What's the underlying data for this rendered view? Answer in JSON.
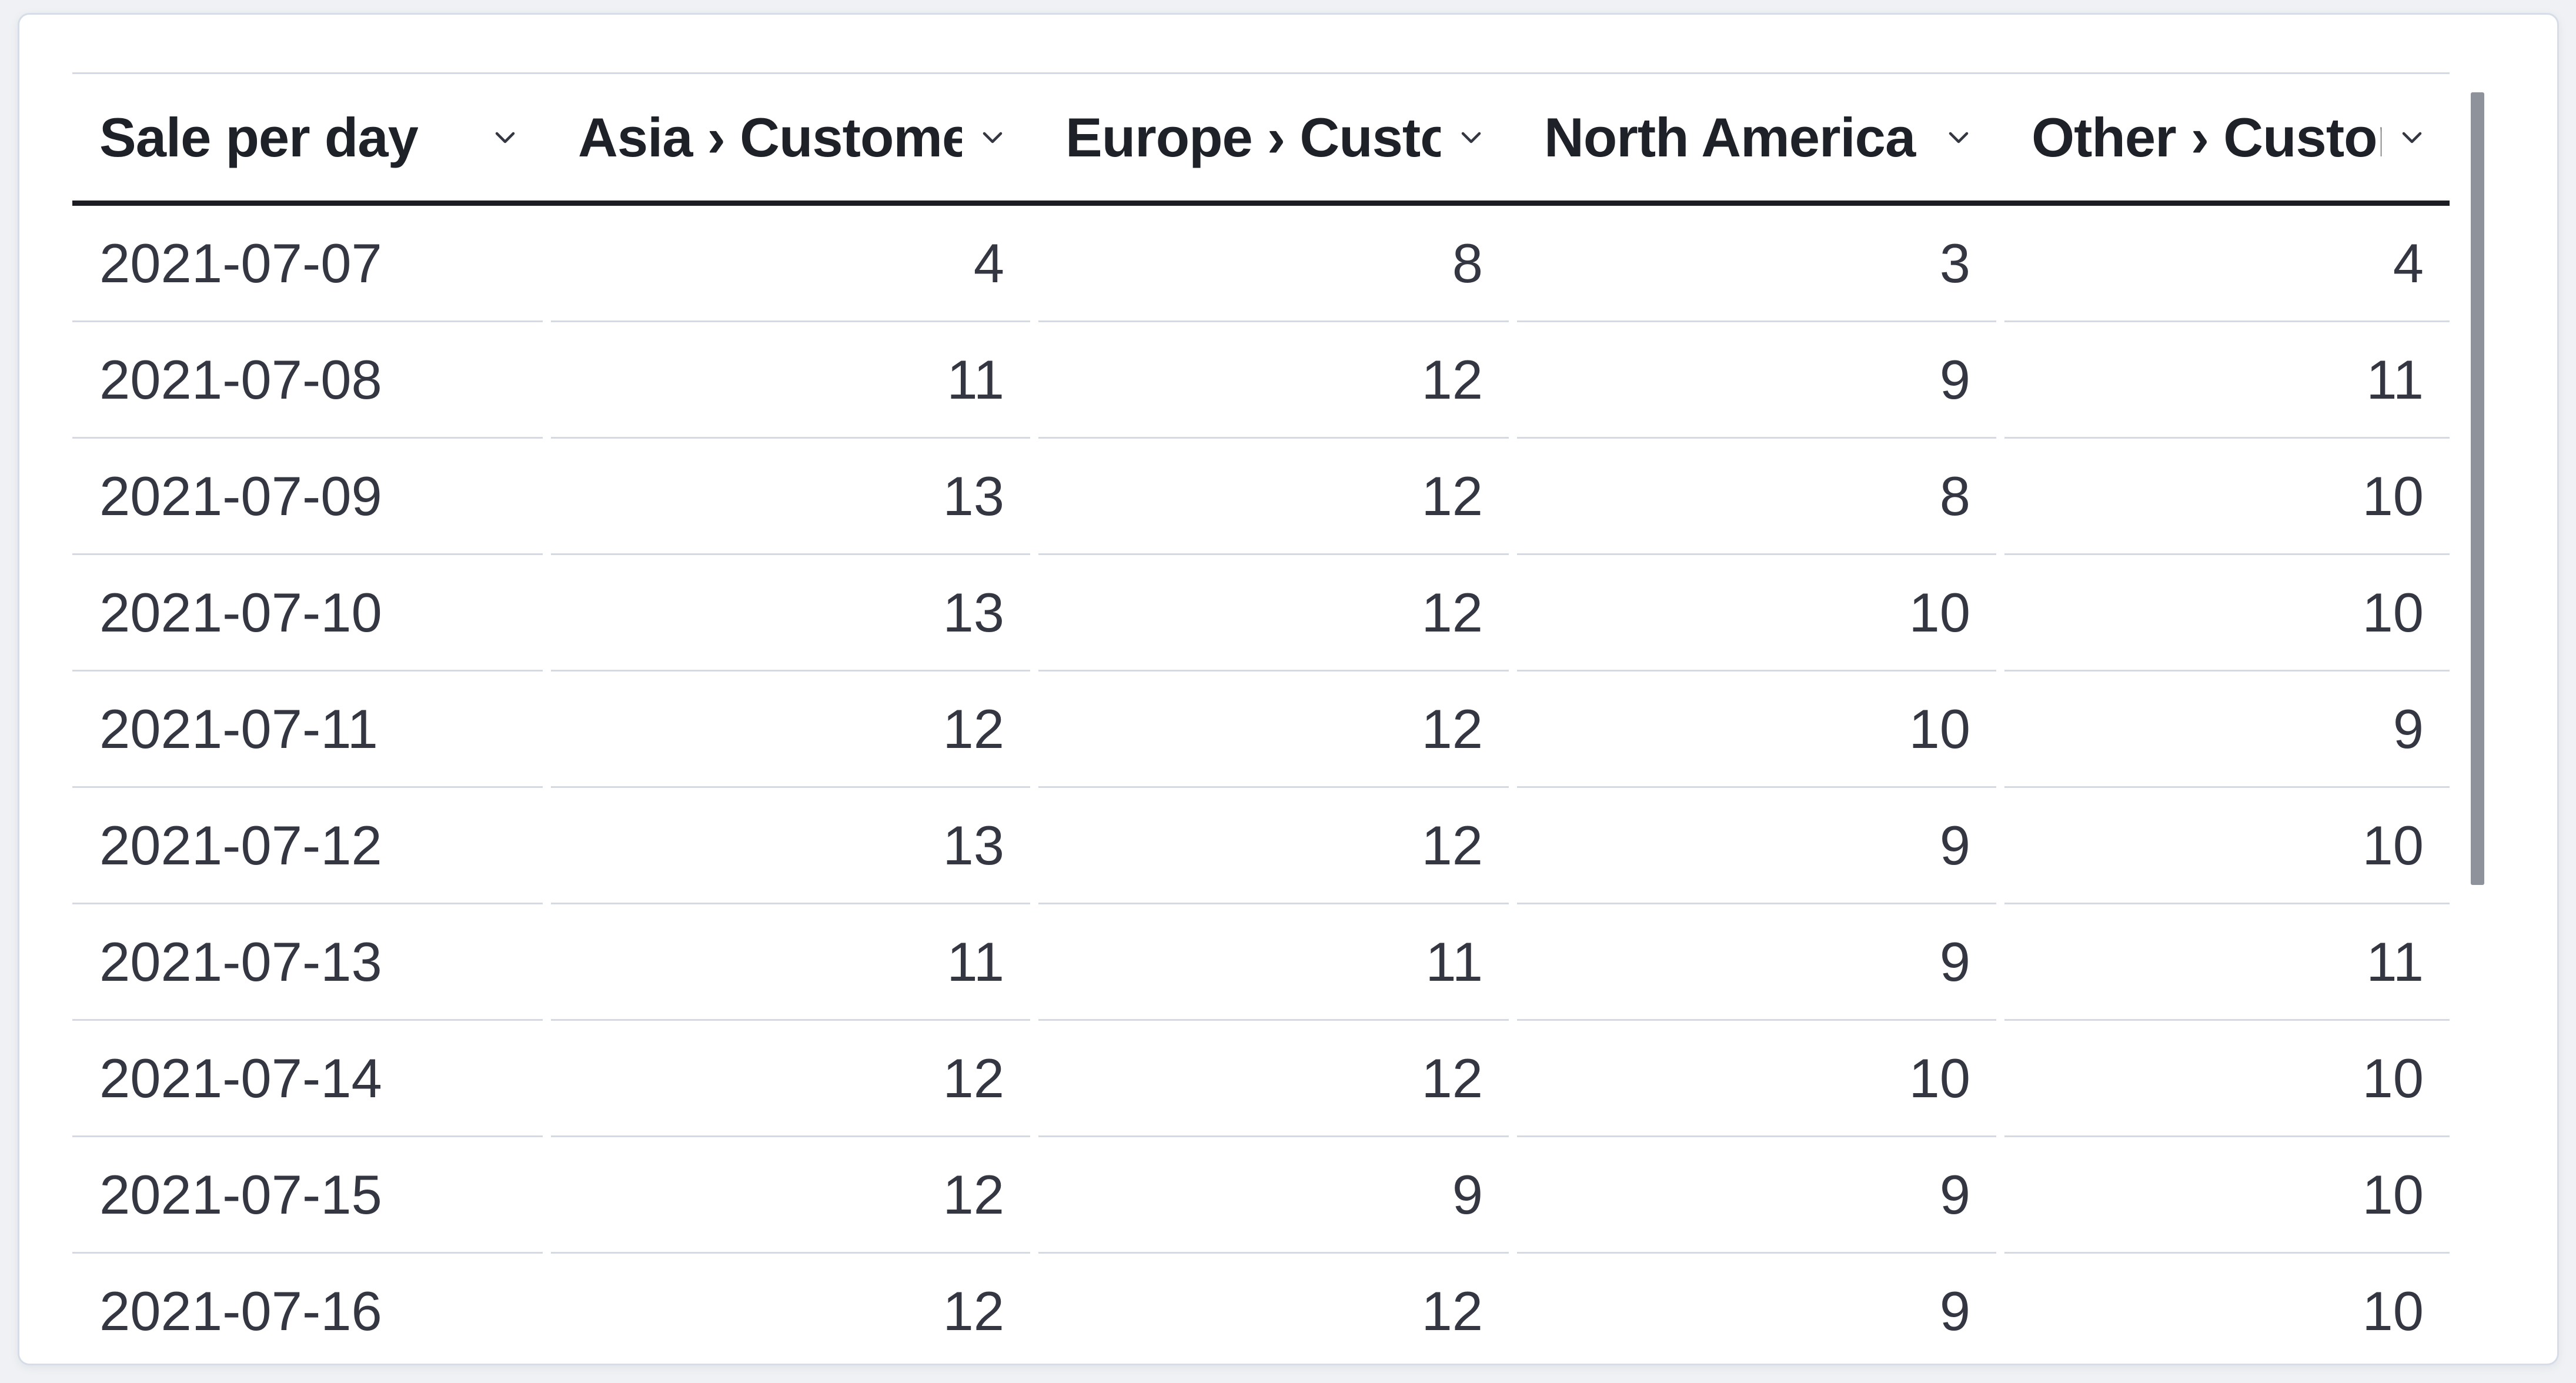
{
  "panel": {
    "kind": "data-table-visualization"
  },
  "table": {
    "columns": [
      {
        "label": "Sale per day",
        "align": "left"
      },
      {
        "label": "Asia › Customers",
        "align": "right"
      },
      {
        "label": "Europe › Custom",
        "align": "right"
      },
      {
        "label": "North America ›",
        "align": "right"
      },
      {
        "label": "Other › Custome",
        "align": "right"
      }
    ],
    "rows": [
      {
        "date": "2021-07-07",
        "values": [
          "4",
          "8",
          "3",
          "4"
        ]
      },
      {
        "date": "2021-07-08",
        "values": [
          "11",
          "12",
          "9",
          "11"
        ]
      },
      {
        "date": "2021-07-09",
        "values": [
          "13",
          "12",
          "8",
          "10"
        ]
      },
      {
        "date": "2021-07-10",
        "values": [
          "13",
          "12",
          "10",
          "10"
        ]
      },
      {
        "date": "2021-07-11",
        "values": [
          "12",
          "12",
          "10",
          "9"
        ]
      },
      {
        "date": "2021-07-12",
        "values": [
          "13",
          "12",
          "9",
          "10"
        ]
      },
      {
        "date": "2021-07-13",
        "values": [
          "11",
          "11",
          "9",
          "11"
        ]
      },
      {
        "date": "2021-07-14",
        "values": [
          "12",
          "12",
          "10",
          "10"
        ]
      },
      {
        "date": "2021-07-15",
        "values": [
          "12",
          "9",
          "9",
          "10"
        ]
      },
      {
        "date": "2021-07-16",
        "values": [
          "12",
          "12",
          "9",
          "10"
        ]
      }
    ]
  },
  "icons": {
    "column_sort": "chevron-down-icon"
  },
  "colors": {
    "text": "#343741",
    "header_text": "#1f2128",
    "row_border": "#d3dae6",
    "header_border": "#1b1d23",
    "panel_border": "#d6dce8",
    "page_bg": "#eff1f4",
    "scrollbar_thumb": "#8e939b"
  }
}
